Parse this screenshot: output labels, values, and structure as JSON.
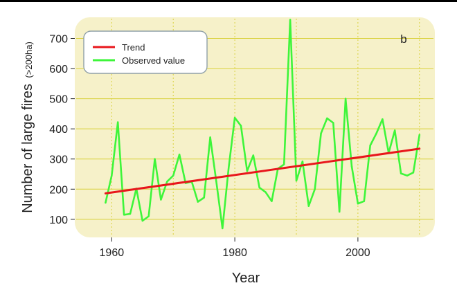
{
  "chart_data": {
    "type": "line",
    "panel_label": "b",
    "xlabel": "Year",
    "ylabel": "Number of large fires",
    "ylabel_suffix": "(>200ha)",
    "xlim": [
      1954,
      2012.5
    ],
    "ylim": [
      40,
      770
    ],
    "xticks": [
      1960,
      1980,
      2000
    ],
    "yticks": [
      100,
      200,
      300,
      400,
      500,
      600,
      700
    ],
    "colors": {
      "background": "#f6f1c9",
      "grid": "#d9d13c",
      "trend": "#e8161b",
      "observed": "#3ef53a",
      "legend_bg": "#ffffff",
      "legend_border": "#8fa0a8"
    },
    "legend": [
      {
        "name": "Trend",
        "color": "#e8161b"
      },
      {
        "name": "Observed value",
        "color": "#3ef53a"
      }
    ],
    "series": [
      {
        "name": "Observed value",
        "color": "#3ef53a",
        "x": [
          1959,
          1960,
          1961,
          1962,
          1963,
          1964,
          1965,
          1966,
          1967,
          1968,
          1969,
          1970,
          1971,
          1972,
          1973,
          1974,
          1975,
          1976,
          1977,
          1978,
          1979,
          1980,
          1981,
          1982,
          1983,
          1984,
          1985,
          1986,
          1987,
          1988,
          1989,
          1990,
          1991,
          1992,
          1993,
          1994,
          1995,
          1996,
          1997,
          1998,
          1999,
          2000,
          2001,
          2002,
          2003,
          2004,
          2005,
          2006,
          2007,
          2008,
          2009,
          2010
        ],
        "values": [
          155,
          245,
          422,
          115,
          118,
          202,
          95,
          110,
          300,
          165,
          225,
          245,
          315,
          220,
          225,
          158,
          172,
          372,
          225,
          70,
          270,
          437,
          410,
          260,
          312,
          205,
          190,
          160,
          268,
          282,
          762,
          228,
          292,
          144,
          200,
          385,
          435,
          420,
          125,
          500,
          275,
          152,
          160,
          345,
          385,
          432,
          320,
          395,
          252,
          245,
          255,
          380
        ]
      },
      {
        "name": "Trend",
        "color": "#e8161b",
        "x": [
          1959,
          2010
        ],
        "values": [
          186,
          334
        ]
      }
    ]
  }
}
